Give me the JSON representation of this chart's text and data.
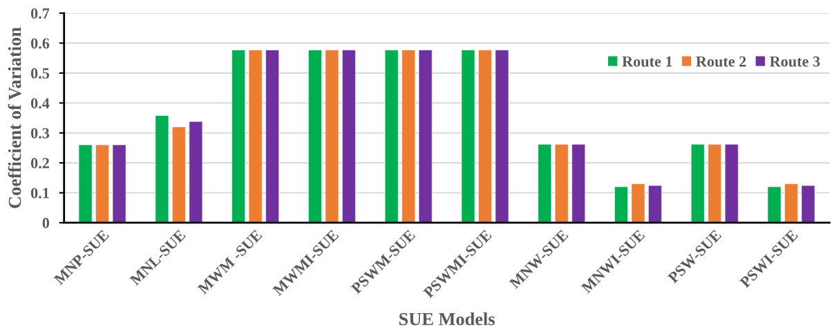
{
  "chart_data": {
    "type": "bar",
    "xlabel": "SUE Models",
    "ylabel": "Coefficient of Variation",
    "categories": [
      "MNP-SUE",
      "MNL-SUE",
      "MWM -SUE",
      "MWMI-SUE",
      "PSWM-SUE",
      "PSWMI-SUE",
      "MNW-SUE",
      "MNWI-SUE",
      "PSW-SUE",
      "PSWI-SUE"
    ],
    "series": [
      {
        "name": "Route 1",
        "color": "#00b050",
        "values": [
          0.26,
          0.358,
          0.577,
          0.577,
          0.577,
          0.577,
          0.262,
          0.12,
          0.262,
          0.12
        ]
      },
      {
        "name": "Route 2",
        "color": "#ed7d31",
        "values": [
          0.26,
          0.32,
          0.577,
          0.577,
          0.577,
          0.577,
          0.262,
          0.13,
          0.262,
          0.13
        ]
      },
      {
        "name": "Route 3",
        "color": "#7030a0",
        "values": [
          0.26,
          0.338,
          0.577,
          0.577,
          0.577,
          0.577,
          0.262,
          0.124,
          0.262,
          0.124
        ]
      }
    ],
    "ylim": [
      0,
      0.7
    ],
    "yticks": [
      0,
      0.1,
      0.2,
      0.3,
      0.4,
      0.5,
      0.6,
      0.7
    ],
    "grid": "y",
    "legend": "top right"
  }
}
